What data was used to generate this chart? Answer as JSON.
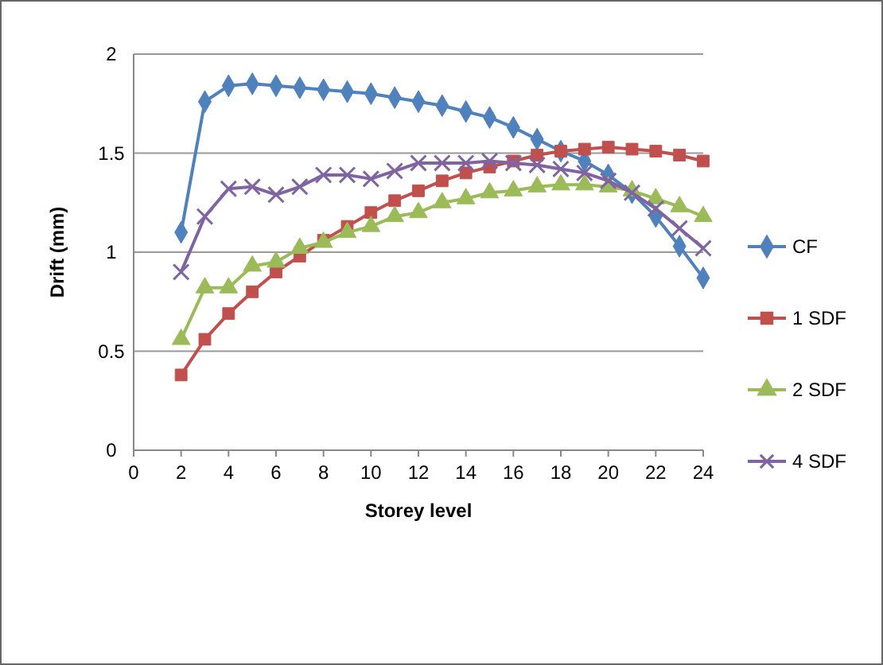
{
  "chart_data": {
    "type": "line",
    "xlabel": "Storey level",
    "ylabel": "Drift (mm)",
    "x": [
      2,
      3,
      4,
      5,
      6,
      7,
      8,
      9,
      10,
      11,
      12,
      13,
      14,
      15,
      16,
      17,
      18,
      19,
      20,
      21,
      22,
      23,
      24
    ],
    "xlim": [
      0,
      24
    ],
    "xticks": [
      0,
      2,
      4,
      6,
      8,
      10,
      12,
      14,
      16,
      18,
      20,
      22,
      24
    ],
    "ylim": [
      0,
      2
    ],
    "yticks": [
      0,
      0.5,
      1,
      1.5,
      2
    ],
    "grid": "y",
    "legend": "right",
    "series": [
      {
        "name": "CF",
        "color": "#4f81bd",
        "marker": "diamond",
        "values": [
          1.1,
          1.76,
          1.84,
          1.85,
          1.84,
          1.83,
          1.82,
          1.81,
          1.8,
          1.78,
          1.76,
          1.74,
          1.71,
          1.68,
          1.63,
          1.57,
          1.51,
          1.46,
          1.39,
          1.3,
          1.18,
          1.03,
          0.87
        ]
      },
      {
        "name": "1 SDF",
        "color": "#c0504d",
        "marker": "square",
        "values": [
          0.38,
          0.56,
          0.69,
          0.8,
          0.9,
          0.98,
          1.06,
          1.13,
          1.2,
          1.26,
          1.31,
          1.36,
          1.4,
          1.43,
          1.46,
          1.49,
          1.51,
          1.52,
          1.53,
          1.52,
          1.51,
          1.49,
          1.46
        ]
      },
      {
        "name": "2 SDF",
        "color": "#9bbb59",
        "marker": "triangle",
        "values": [
          0.56,
          0.82,
          0.82,
          0.93,
          0.95,
          1.02,
          1.05,
          1.1,
          1.13,
          1.18,
          1.2,
          1.25,
          1.27,
          1.3,
          1.31,
          1.33,
          1.34,
          1.34,
          1.33,
          1.31,
          1.27,
          1.23,
          1.18
        ]
      },
      {
        "name": "4 SDF",
        "color": "#8064a2",
        "marker": "cross",
        "values": [
          0.9,
          1.18,
          1.32,
          1.33,
          1.29,
          1.33,
          1.39,
          1.39,
          1.37,
          1.41,
          1.45,
          1.45,
          1.45,
          1.46,
          1.45,
          1.44,
          1.42,
          1.4,
          1.36,
          1.3,
          1.22,
          1.12,
          1.02
        ]
      }
    ]
  }
}
